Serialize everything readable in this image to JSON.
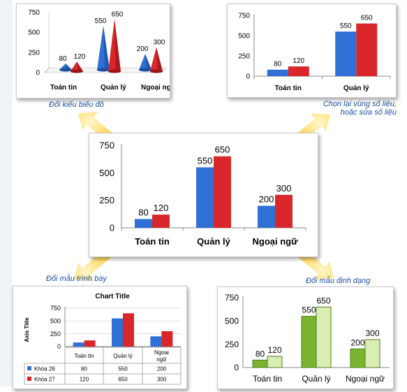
{
  "colors": {
    "blue": "#2f6fd6",
    "red": "#d8262b",
    "green": "#7ab531",
    "light_green": "#d9edb5",
    "caption": "#1a4f9c",
    "arrow": "#ffd34d"
  },
  "captions": {
    "top_left": "Đổi kiểu biểu đồ",
    "top_right_1": "Chọn lại vùng số liệu,",
    "top_right_2": "hoặc sửa số liệu",
    "bottom_left": "Đổi mẫu trình bày",
    "bottom_right": "Đổi mẫu định dạng"
  },
  "chart_data": [
    {
      "id": "top_left_3d_cone",
      "type": "bar",
      "style": "3d-cone",
      "categories": [
        "Toán tin",
        "Quản lý",
        "Ngoại ngữ"
      ],
      "series": [
        {
          "values": [
            80,
            550,
            200
          ]
        },
        {
          "values": [
            120,
            650,
            300
          ]
        }
      ],
      "yticks": [
        "0",
        "250",
        "500",
        "750"
      ],
      "ylim": [
        0,
        750
      ]
    },
    {
      "id": "top_right",
      "type": "bar",
      "categories": [
        "Toán tin",
        "Quản lý"
      ],
      "series": [
        {
          "values": [
            80,
            550
          ]
        },
        {
          "values": [
            120,
            650
          ]
        }
      ],
      "yticks": [
        "0",
        "250",
        "500",
        "750"
      ],
      "ylim": [
        0,
        750
      ]
    },
    {
      "id": "center",
      "type": "bar",
      "categories": [
        "Toán tin",
        "Quản lý",
        "Ngoại ngữ"
      ],
      "series": [
        {
          "values": [
            80,
            550,
            200
          ]
        },
        {
          "values": [
            120,
            650,
            300
          ]
        }
      ],
      "yticks": [
        "0",
        "250",
        "500",
        "750"
      ],
      "ylim": [
        0,
        750
      ]
    },
    {
      "id": "bottom_left",
      "type": "bar",
      "title": "Chart Title",
      "ylabel": "Axis Title",
      "categories": [
        "Toán tin",
        "Quản lý",
        "Ngoại ngữ"
      ],
      "series": [
        {
          "name": "Khóa 26",
          "values": [
            80,
            550,
            200
          ]
        },
        {
          "name": "Khóa 27",
          "values": [
            120,
            650,
            300
          ]
        }
      ],
      "yticks": [
        "0",
        "250",
        "500",
        "750"
      ],
      "ylim": [
        0,
        750
      ],
      "data_table": true
    },
    {
      "id": "bottom_right",
      "type": "bar",
      "categories": [
        "Toán tin",
        "Quản lý",
        "Ngoại ngữ"
      ],
      "series": [
        {
          "values": [
            80,
            550,
            200
          ]
        },
        {
          "values": [
            120,
            650,
            300
          ]
        }
      ],
      "yticks": [
        "0",
        "250",
        "500",
        "750"
      ],
      "ylim": [
        0,
        750
      ]
    }
  ]
}
